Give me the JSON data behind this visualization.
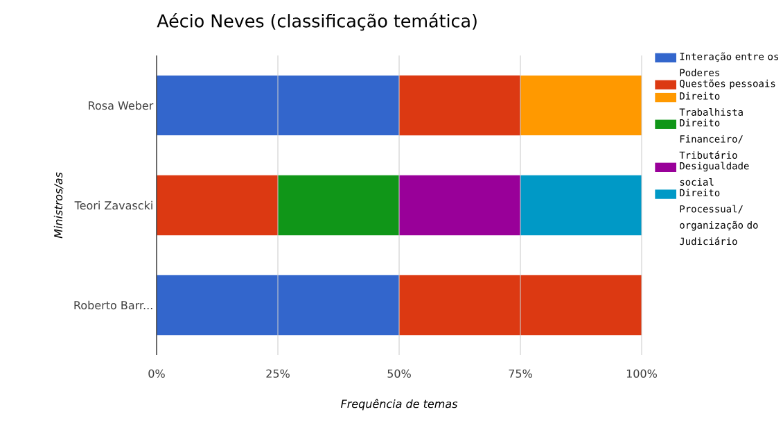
{
  "chart_data": {
    "type": "bar",
    "orientation": "horizontal",
    "stacked": true,
    "title": "Aécio Neves (classificação temática)",
    "xlabel": "Frequência de temas",
    "ylabel": "Ministros/as",
    "categories": [
      "Rosa Weber",
      "Teori Zavascki",
      "Roberto Barr..."
    ],
    "series": [
      {
        "name": "Interação entre os Poderes",
        "color": "#3366cc",
        "values": [
          50,
          null,
          50
        ]
      },
      {
        "name": "Questões pessoais",
        "color": "#dc3912",
        "values": [
          25,
          25,
          50
        ]
      },
      {
        "name": "Direito Trabalhista",
        "color": "#ff9900",
        "values": [
          25,
          null,
          null
        ]
      },
      {
        "name": "Direito Financeiro/ Tributário",
        "color": "#109618",
        "values": [
          null,
          25,
          null
        ]
      },
      {
        "name": "Desigualdade social",
        "color": "#990099",
        "values": [
          null,
          25,
          null
        ]
      },
      {
        "name": "Direito Processual/ organização do Judiciário",
        "color": "#0099c6",
        "values": [
          null,
          25,
          null
        ]
      }
    ],
    "xlim": [
      0,
      100
    ],
    "xticks": [
      {
        "value": 0,
        "label": "0%"
      },
      {
        "value": 25,
        "label": "25%"
      },
      {
        "value": 50,
        "label": "50%"
      },
      {
        "value": 75,
        "label": "75%"
      },
      {
        "value": 100,
        "label": "100%"
      }
    ],
    "grid": "x",
    "legend": "right"
  }
}
